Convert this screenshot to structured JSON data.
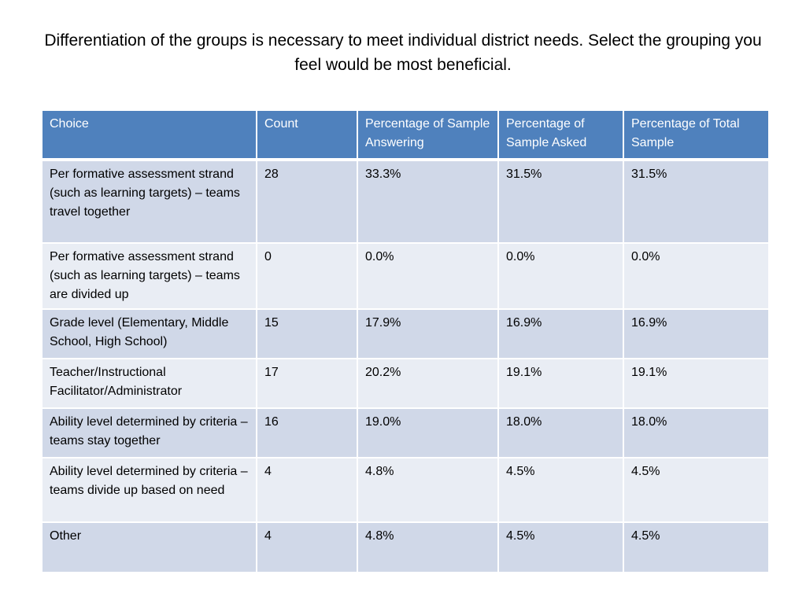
{
  "slide": {
    "title": "Differentiation of the groups is necessary to meet individual district needs.  Select the grouping you feel would be most beneficial."
  },
  "table": {
    "headers": [
      "Choice",
      "Count",
      "Percentage of Sample Answering",
      "Percentage of Sample Asked",
      "Percentage of Total Sample"
    ],
    "rows": [
      [
        "Per formative assessment strand (such as learning targets) – teams travel together",
        "28",
        "33.3%",
        "31.5%",
        "31.5%"
      ],
      [
        "Per formative assessment strand (such as learning targets) – teams are divided up",
        "0",
        "0.0%",
        "0.0%",
        "0.0%"
      ],
      [
        "Grade level (Elementary, Middle School, High School)",
        "15",
        "17.9%",
        "16.9%",
        "16.9%"
      ],
      [
        "Teacher/Instructional Facilitator/Administrator",
        "17",
        "20.2%",
        "19.1%",
        "19.1%"
      ],
      [
        "Ability level determined by criteria – teams stay together",
        "16",
        "19.0%",
        "18.0%",
        "18.0%"
      ],
      [
        "Ability level determined by criteria – teams divide up based on need",
        "4",
        "4.8%",
        "4.5%",
        "4.5%"
      ],
      [
        "Other",
        "4",
        "4.8%",
        "4.5%",
        "4.5%"
      ]
    ]
  },
  "colors": {
    "header_bg": "#4f81bd",
    "row_odd_bg": "#d0d8e8",
    "row_even_bg": "#e9edf4"
  }
}
